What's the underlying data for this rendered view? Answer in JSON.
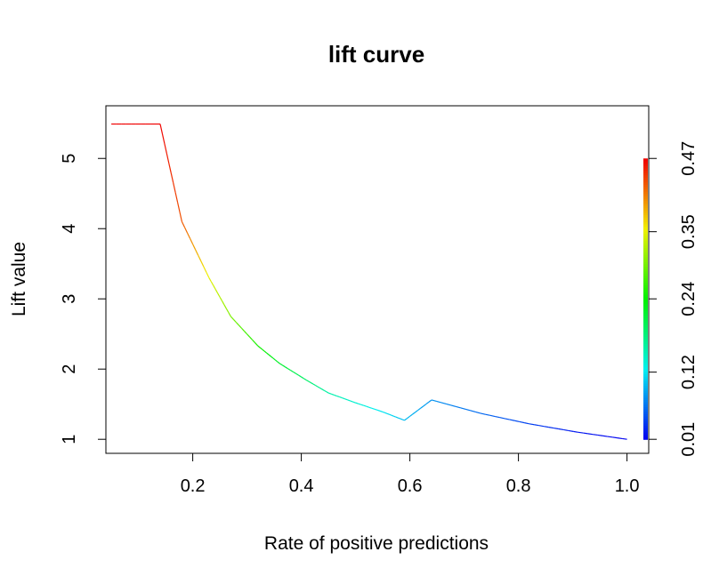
{
  "chart_data": {
    "type": "line",
    "title": "lift curve",
    "xlabel": "Rate of positive predictions",
    "ylabel": "Lift value",
    "xlim": [
      0.04,
      1.04
    ],
    "ylim": [
      0.8,
      5.75
    ],
    "xticks": [
      0.2,
      0.4,
      0.6,
      0.8,
      1.0
    ],
    "xtick_labels": [
      "0.2",
      "0.4",
      "0.6",
      "0.8",
      "1.0"
    ],
    "yticks": [
      1,
      2,
      3,
      4,
      5
    ],
    "ytick_labels": [
      "1",
      "2",
      "3",
      "4",
      "5"
    ],
    "grid": false,
    "legend": "none",
    "color_scale": {
      "description": "colorized by cutoff (rainbow)",
      "min": 0.01,
      "max": 0.47,
      "tick_values": [
        0.01,
        0.12,
        0.24,
        0.35,
        0.47
      ],
      "tick_labels": [
        "0.01",
        "0.12",
        "0.24",
        "0.35",
        "0.47"
      ],
      "colors": [
        "#0000ff",
        "#00ffff",
        "#00ff00",
        "#ffff00",
        "#ff0000"
      ]
    },
    "series": [
      {
        "points": [
          {
            "x": 0.05,
            "y": 5.49,
            "cutoff": 0.47
          },
          {
            "x": 0.14,
            "y": 5.49,
            "cutoff": 0.47
          },
          {
            "x": 0.18,
            "y": 4.1,
            "cutoff": 0.43
          },
          {
            "x": 0.23,
            "y": 3.3,
            "cutoff": 0.35
          },
          {
            "x": 0.27,
            "y": 2.75,
            "cutoff": 0.3
          },
          {
            "x": 0.32,
            "y": 2.33,
            "cutoff": 0.25
          },
          {
            "x": 0.36,
            "y": 2.08,
            "cutoff": 0.22
          },
          {
            "x": 0.41,
            "y": 1.84,
            "cutoff": 0.19
          },
          {
            "x": 0.45,
            "y": 1.66,
            "cutoff": 0.16
          },
          {
            "x": 0.5,
            "y": 1.52,
            "cutoff": 0.14
          },
          {
            "x": 0.55,
            "y": 1.39,
            "cutoff": 0.12
          },
          {
            "x": 0.59,
            "y": 1.27,
            "cutoff": 0.1
          },
          {
            "x": 0.64,
            "y": 1.56,
            "cutoff": 0.08
          },
          {
            "x": 0.73,
            "y": 1.37,
            "cutoff": 0.06
          },
          {
            "x": 0.82,
            "y": 1.22,
            "cutoff": 0.04
          },
          {
            "x": 0.91,
            "y": 1.1,
            "cutoff": 0.02
          },
          {
            "x": 1.0,
            "y": 1.0,
            "cutoff": 0.01
          }
        ]
      }
    ]
  }
}
